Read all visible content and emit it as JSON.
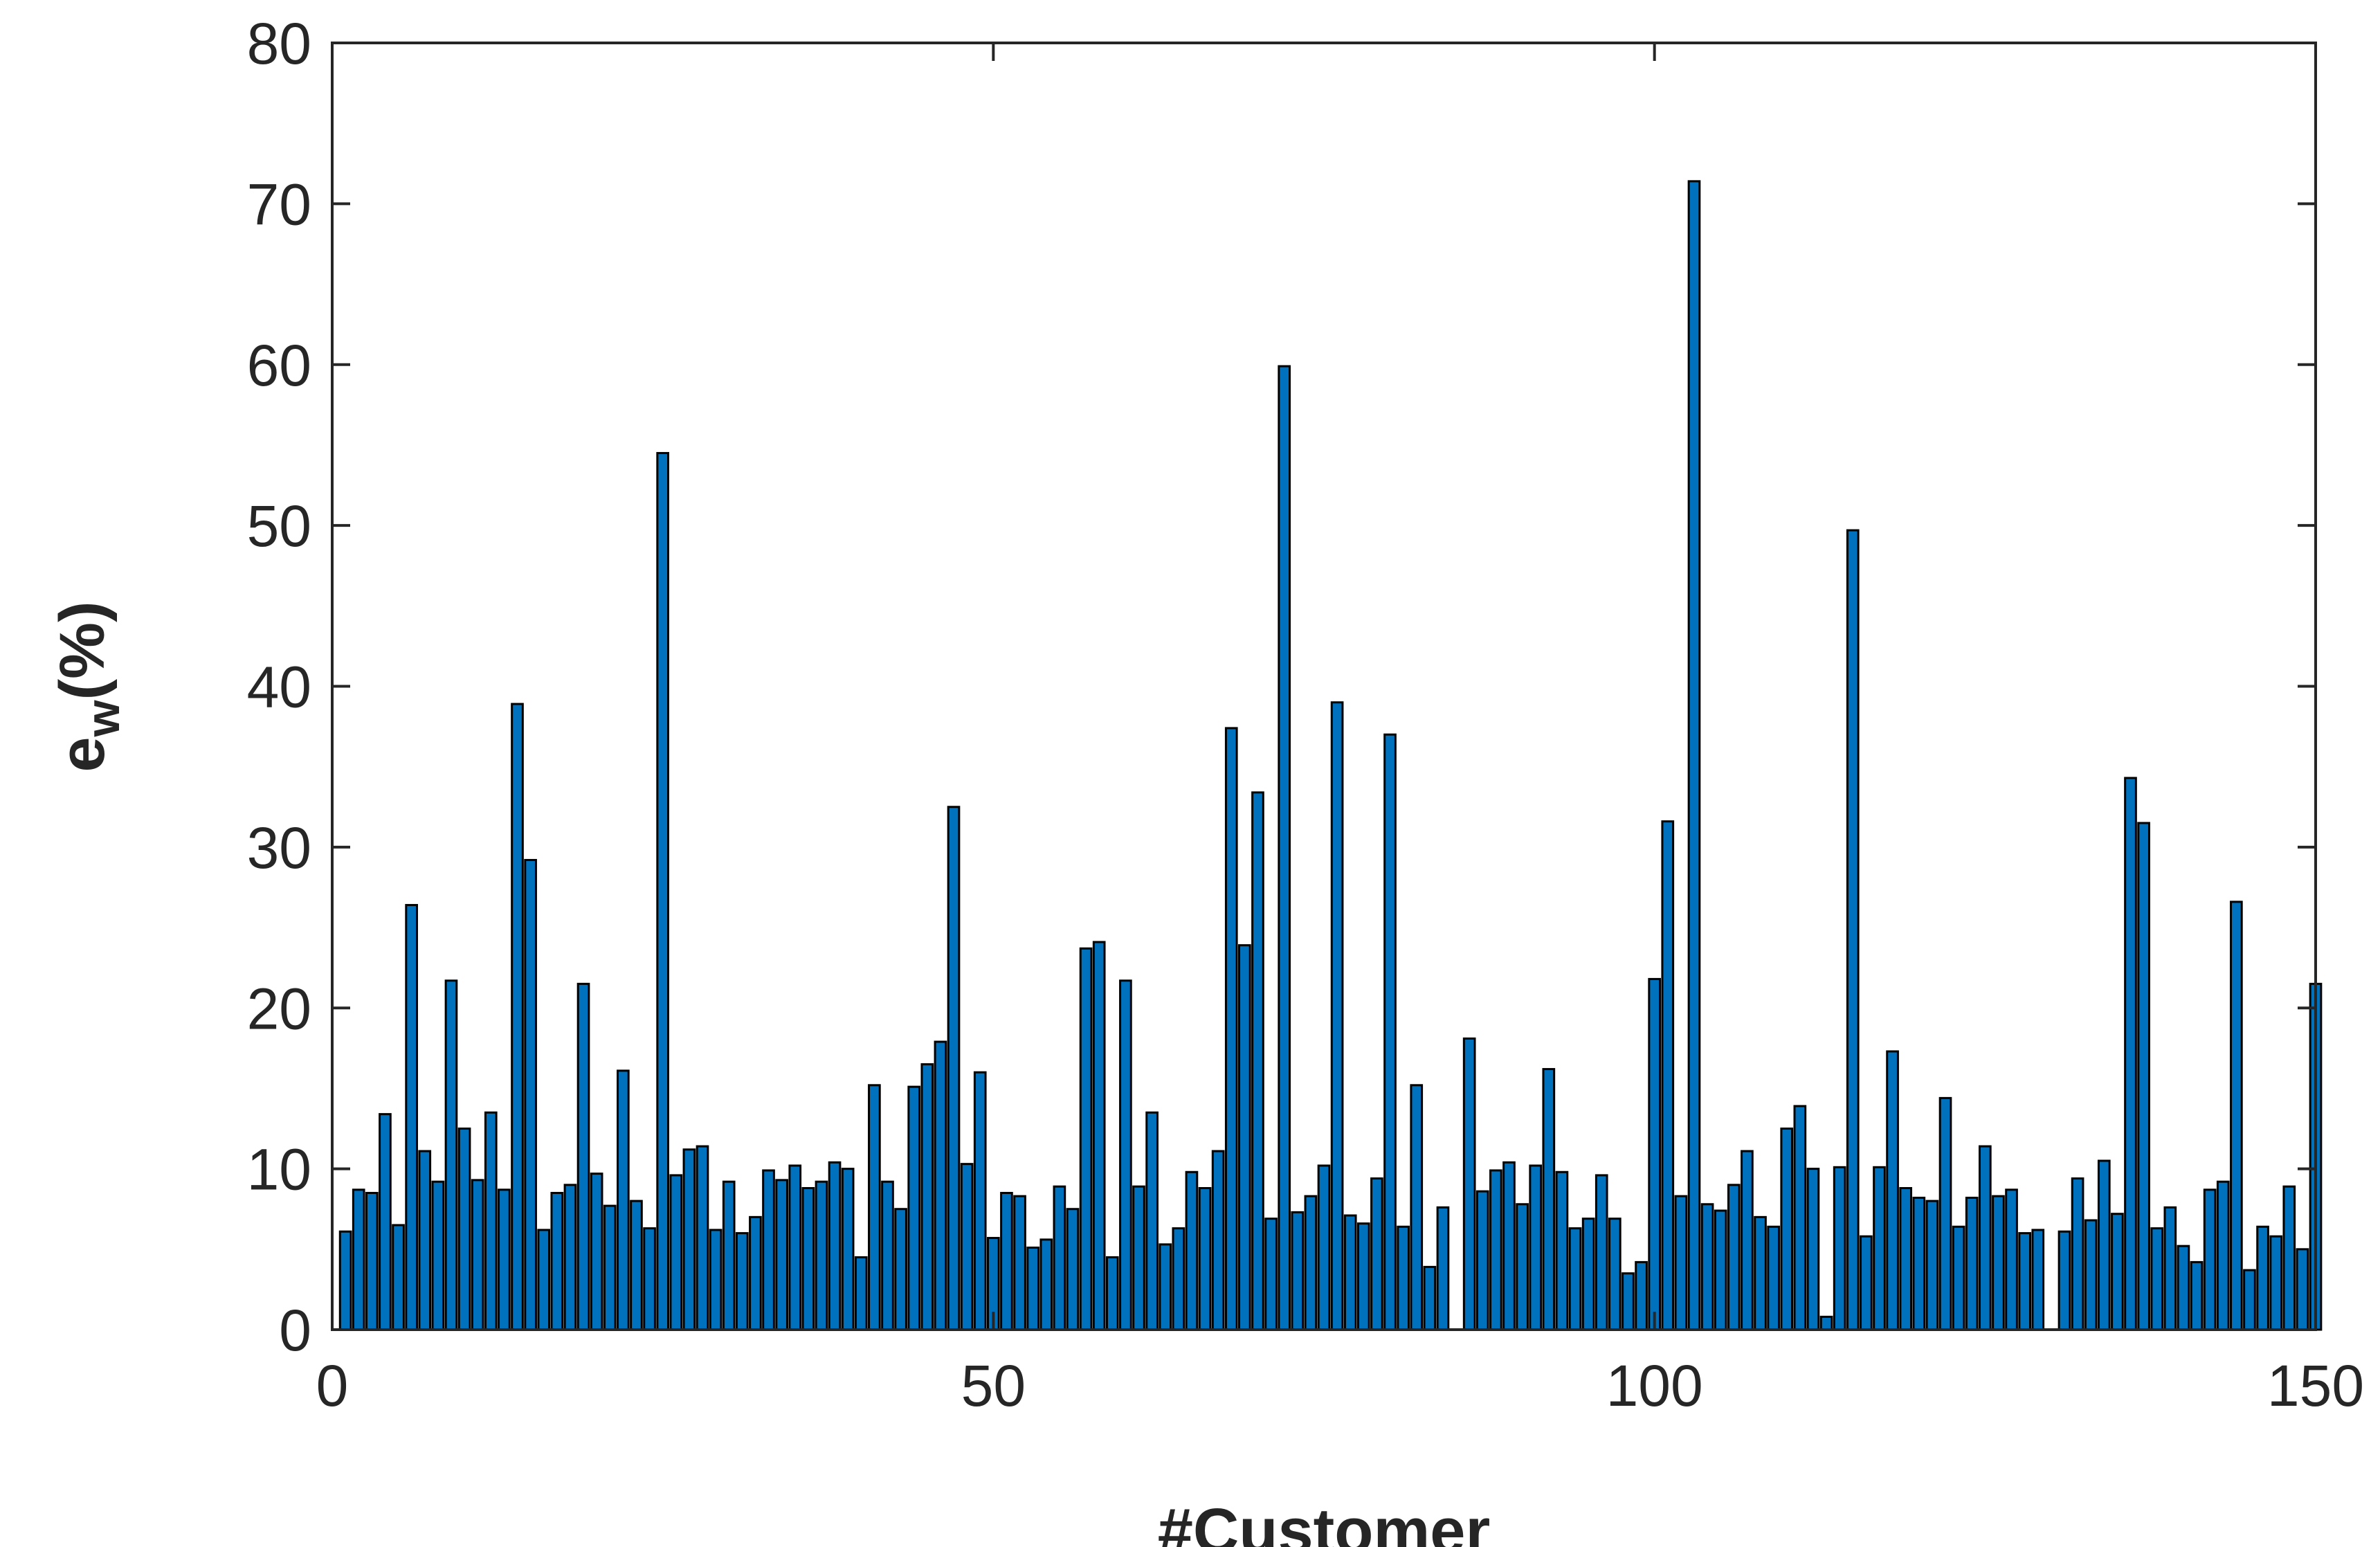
{
  "chart_data": {
    "type": "bar",
    "xlabel": "#Customer",
    "ylabel": {
      "main": "e",
      "subscript": "w",
      "suffix": "(%)"
    },
    "xlim": [
      0,
      150
    ],
    "ylim": [
      0,
      80
    ],
    "xticks": [
      0,
      50,
      100,
      150
    ],
    "yticks": [
      0,
      10,
      20,
      30,
      40,
      50,
      60,
      70,
      80
    ],
    "grid": false,
    "bar_color": "#0072BD",
    "edge_color": "#000000",
    "x": [
      1,
      2,
      3,
      4,
      5,
      6,
      7,
      8,
      9,
      10,
      11,
      12,
      13,
      14,
      15,
      16,
      17,
      18,
      19,
      20,
      21,
      22,
      23,
      24,
      25,
      26,
      27,
      28,
      29,
      30,
      31,
      32,
      33,
      34,
      35,
      36,
      37,
      38,
      39,
      40,
      41,
      42,
      43,
      44,
      45,
      46,
      47,
      48,
      49,
      50,
      51,
      52,
      53,
      54,
      55,
      56,
      57,
      58,
      59,
      60,
      61,
      62,
      63,
      64,
      65,
      66,
      67,
      68,
      69,
      70,
      71,
      72,
      73,
      74,
      75,
      76,
      77,
      78,
      79,
      80,
      81,
      82,
      83,
      84,
      85,
      86,
      87,
      88,
      89,
      90,
      91,
      92,
      93,
      94,
      95,
      96,
      97,
      98,
      99,
      100,
      101,
      102,
      103,
      104,
      105,
      106,
      107,
      108,
      109,
      110,
      111,
      112,
      113,
      114,
      115,
      116,
      117,
      118,
      119,
      120,
      121,
      122,
      123,
      124,
      125,
      126,
      127,
      128,
      129,
      130,
      131,
      132,
      133,
      134,
      135,
      136,
      137,
      138,
      139,
      140,
      141,
      142,
      143,
      144,
      145,
      146,
      147,
      148,
      149,
      150
    ],
    "values": [
      6.1,
      8.7,
      8.5,
      13.4,
      6.5,
      26.4,
      11.1,
      9.2,
      21.7,
      12.5,
      9.3,
      13.5,
      8.7,
      38.9,
      29.2,
      6.2,
      8.5,
      9.0,
      21.5,
      9.7,
      7.7,
      16.1,
      8.0,
      6.3,
      54.5,
      9.6,
      11.2,
      11.4,
      6.2,
      9.2,
      6.0,
      7.0,
      9.9,
      9.3,
      10.2,
      8.8,
      9.2,
      10.4,
      10.0,
      4.5,
      15.2,
      9.2,
      7.5,
      15.1,
      16.5,
      17.9,
      32.5,
      10.3,
      16.0,
      5.7,
      8.5,
      8.3,
      5.1,
      5.6,
      8.9,
      7.5,
      23.7,
      24.1,
      4.5,
      21.7,
      8.9,
      13.5,
      5.3,
      6.3,
      9.8,
      8.8,
      11.1,
      37.4,
      23.9,
      33.4,
      6.9,
      59.9,
      7.3,
      8.3,
      10.2,
      39.0,
      7.1,
      6.6,
      9.4,
      37.0,
      6.4,
      15.2,
      3.9,
      7.6,
      0.0,
      18.1,
      8.6,
      9.9,
      10.4,
      7.8,
      10.2,
      16.2,
      9.8,
      6.3,
      6.9,
      9.6,
      6.9,
      3.5,
      4.2,
      21.8,
      31.6,
      8.3,
      71.4,
      7.8,
      7.4,
      9.0,
      11.1,
      7.0,
      6.4,
      12.5,
      13.9,
      10.0,
      0.8,
      10.1,
      49.7,
      5.8,
      10.1,
      17.3,
      8.8,
      8.2,
      8.0,
      14.4,
      6.4,
      8.2,
      11.4,
      8.3,
      8.7,
      6.0,
      6.2,
      0.0,
      6.1,
      9.4,
      6.8,
      10.5,
      7.2,
      34.3,
      31.5,
      6.3,
      7.6,
      5.2,
      4.2,
      8.7,
      9.2,
      26.6,
      3.7,
      6.4,
      5.8,
      8.9,
      5.0,
      21.5
    ]
  }
}
